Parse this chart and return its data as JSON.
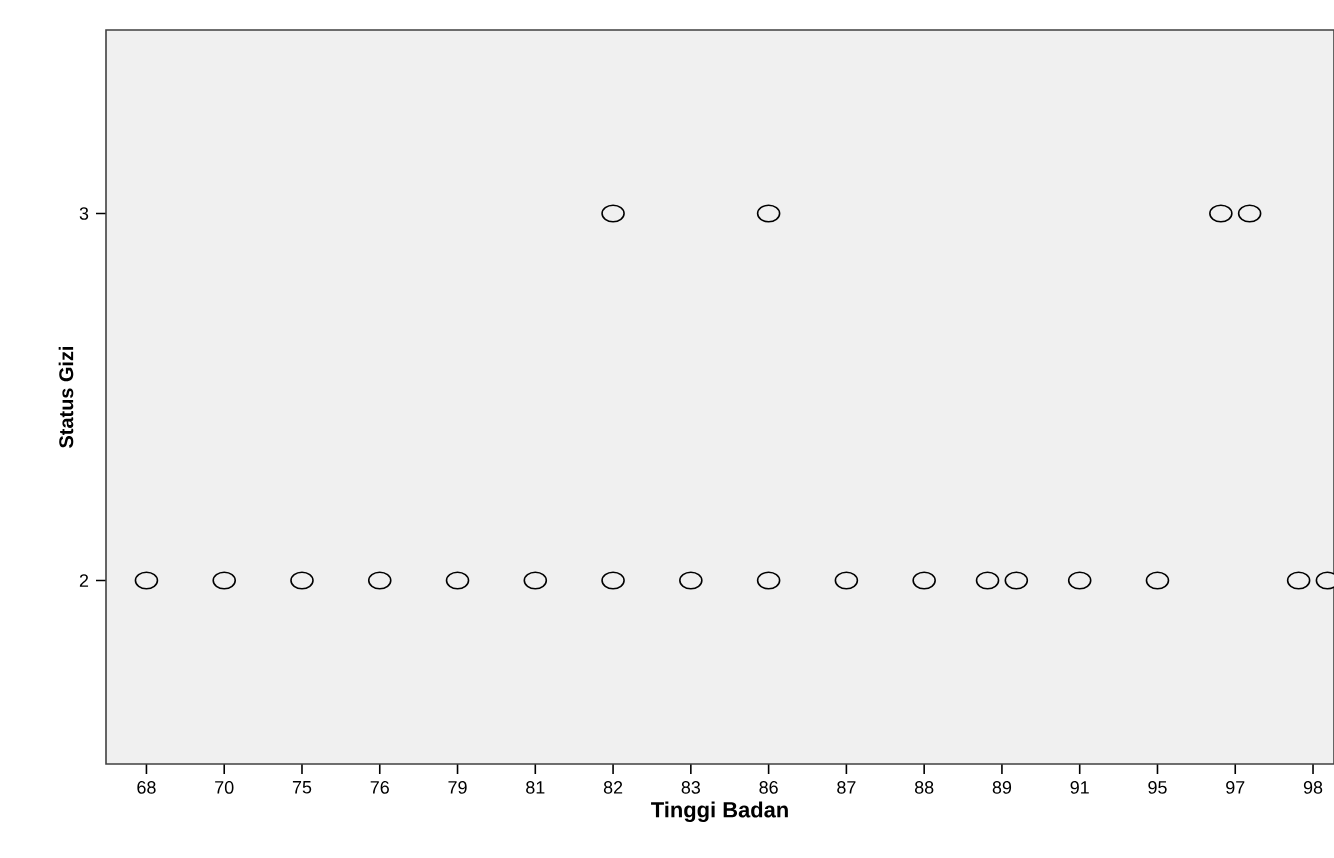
{
  "chart_data": {
    "type": "scatter",
    "xlabel": "Tinggi Badan",
    "ylabel": "Status Gizi",
    "marker": "circle",
    "categories": [
      "68",
      "70",
      "75",
      "76",
      "79",
      "81",
      "82",
      "83",
      "86",
      "87",
      "88",
      "89",
      "91",
      "95",
      "97",
      "98"
    ],
    "ylim": [
      1.5,
      3.5
    ],
    "yticks": [
      2,
      3
    ],
    "series": [
      {
        "color": "#000000",
        "x": [
          "68",
          "70",
          "75",
          "76",
          "79",
          "81",
          "82",
          "83",
          "86",
          "87",
          "88",
          "89",
          "89",
          "91",
          "95",
          "98",
          "98",
          "82",
          "86",
          "97",
          "97"
        ],
        "values": [
          2,
          2,
          2,
          2,
          2,
          2,
          2,
          2,
          2,
          2,
          2,
          2,
          2,
          2,
          2,
          2,
          2,
          3,
          3,
          3,
          3
        ]
      }
    ]
  }
}
